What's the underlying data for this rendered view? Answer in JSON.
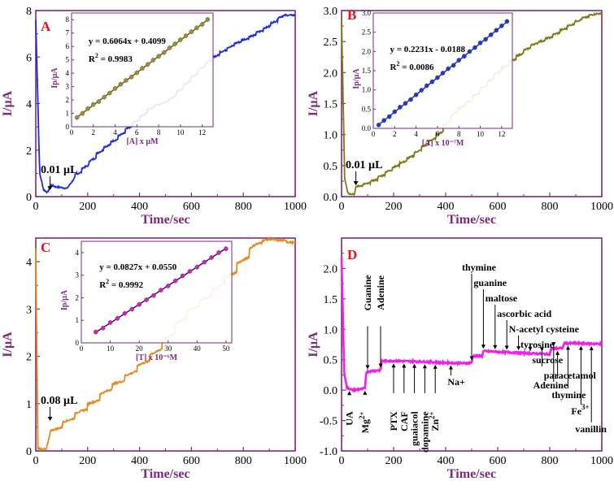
{
  "colors": {
    "axis": "#7b2a7b",
    "label_red": "#e8101a",
    "panelA": "#1a2ee0",
    "panelB": "#7d7a14",
    "panelC": "#e48a1c",
    "panelD": "#f020e8",
    "insetA_fit": "#d01010",
    "insetA_marker": "#7ea030",
    "insetB_fit": "#1a1aa0",
    "insetB_marker": "#1a3ad8",
    "insetC_fit": "#200a60",
    "insetC_marker": "#d020c8"
  },
  "chart_data": [
    {
      "panel": "A",
      "type": "line",
      "label": "A",
      "xlabel": "Time/sec",
      "ylabel": "I/µA",
      "xlim": [
        0,
        1000
      ],
      "ylim": [
        0,
        8
      ],
      "xticks": [
        "0",
        "200",
        "400",
        "600",
        "800",
        "1000"
      ],
      "yticks": [
        "0",
        "2",
        "4",
        "6",
        "8"
      ],
      "annotation": "0.01 µL",
      "annotation_x": 55,
      "profile": [
        [
          0,
          7.6
        ],
        [
          15,
          1.0
        ],
        [
          30,
          0.3
        ],
        [
          45,
          0.18
        ],
        [
          60,
          0.5
        ],
        [
          75,
          0.42
        ],
        [
          95,
          0.4
        ],
        [
          120,
          0.35
        ],
        [
          150,
          0.8
        ],
        [
          200,
          1.3
        ],
        [
          260,
          2.0
        ],
        [
          320,
          2.5
        ],
        [
          400,
          3.3
        ],
        [
          460,
          3.9
        ],
        [
          520,
          4.1
        ],
        [
          600,
          5.0
        ],
        [
          660,
          5.7
        ],
        [
          720,
          6.2
        ],
        [
          780,
          6.6
        ],
        [
          840,
          6.9
        ],
        [
          900,
          7.3
        ],
        [
          960,
          7.8
        ],
        [
          1000,
          7.8
        ]
      ],
      "steps_from": 150,
      "step_width": 28,
      "inset": {
        "xlabel": "[A] x µM",
        "ylabel": "Ip/µA",
        "xlim": [
          0,
          13
        ],
        "ylim": [
          0,
          8.5
        ],
        "xticks": [
          "0",
          "2",
          "4",
          "6",
          "8",
          "10",
          "12"
        ],
        "yticks": [
          "0",
          "1",
          "2",
          "3",
          "4",
          "5",
          "6",
          "7",
          "8"
        ],
        "equation": "y = 0.6064x + 0.4099",
        "r2_label": "R",
        "r2_sup": "2",
        "r2_value": " = 0.9983",
        "slope": 0.6064,
        "intercept": 0.4099,
        "x": [
          0.5,
          1.0,
          1.5,
          2.0,
          2.5,
          3.0,
          3.5,
          4.0,
          4.5,
          5.0,
          5.5,
          6.0,
          6.5,
          7.0,
          7.5,
          8.0,
          8.5,
          9.0,
          9.5,
          10.0,
          10.5,
          11.0,
          11.5,
          12.0,
          12.5
        ]
      }
    },
    {
      "panel": "B",
      "type": "line",
      "label": "B",
      "xlabel": "Time/sec",
      "ylabel": "I/µA",
      "xlim": [
        0,
        1000
      ],
      "ylim": [
        0,
        3.0
      ],
      "xticks": [
        "0",
        "200",
        "400",
        "600",
        "800",
        "1000"
      ],
      "yticks": [
        "0.0",
        "0.5",
        "1.0",
        "1.5",
        "2.0",
        "2.5",
        "3.0"
      ],
      "annotation": "0.01 µL",
      "annotation_x": 55,
      "profile": [
        [
          0,
          2.85
        ],
        [
          12,
          0.3
        ],
        [
          25,
          0.05
        ],
        [
          50,
          0.04
        ],
        [
          55,
          0.15
        ],
        [
          100,
          0.2
        ],
        [
          140,
          0.28
        ],
        [
          200,
          0.45
        ],
        [
          260,
          0.6
        ],
        [
          320,
          0.8
        ],
        [
          380,
          1.0
        ],
        [
          440,
          1.35
        ],
        [
          500,
          1.55
        ],
        [
          560,
          1.8
        ],
        [
          620,
          2.05
        ],
        [
          680,
          2.25
        ],
        [
          740,
          2.45
        ],
        [
          800,
          2.55
        ],
        [
          860,
          2.7
        ],
        [
          920,
          2.85
        ],
        [
          980,
          2.95
        ]
      ],
      "steps_from": 55,
      "step_width": 28,
      "inset": {
        "xlabel": "[A] x 10⁻⁷M",
        "ylabel": "Ip/µA",
        "xlim": [
          0,
          13
        ],
        "ylim": [
          0,
          3.0
        ],
        "xticks": [
          "0",
          "2",
          "4",
          "6",
          "8",
          "10",
          "12"
        ],
        "yticks": [
          "0.0",
          "0.5",
          "1.0",
          "1.5",
          "2.0",
          "2.5",
          "3.0"
        ],
        "equation": "y = 0.2231x - 0.0188",
        "r2_label": "R",
        "r2_sup": "2",
        "r2_value": " = 0.0086",
        "slope": 0.2231,
        "intercept": -0.0188,
        "x": [
          0.5,
          1.0,
          1.5,
          2.0,
          2.5,
          3.0,
          3.5,
          4.0,
          4.5,
          5.0,
          5.5,
          6.0,
          6.5,
          7.0,
          7.5,
          8.0,
          8.5,
          9.0,
          9.5,
          10.0,
          10.5,
          11.0,
          11.5,
          12.0,
          12.5
        ]
      }
    },
    {
      "panel": "C",
      "type": "line",
      "label": "C",
      "xlabel": "Time/sec",
      "ylabel": "I/µA",
      "xlim": [
        0,
        1000
      ],
      "ylim": [
        0,
        4.5
      ],
      "xticks": [
        "0",
        "200",
        "400",
        "600",
        "800",
        "1000"
      ],
      "yticks": [
        "0",
        "1",
        "2",
        "3",
        "4"
      ],
      "annotation": "0.08 µL",
      "annotation_x": 55,
      "profile": [
        [
          0,
          4.3
        ],
        [
          8,
          0.05
        ],
        [
          40,
          0.03
        ],
        [
          55,
          0.35
        ],
        [
          100,
          0.5
        ],
        [
          150,
          0.7
        ],
        [
          200,
          0.9
        ],
        [
          250,
          1.1
        ],
        [
          300,
          1.35
        ],
        [
          360,
          1.55
        ],
        [
          400,
          1.75
        ],
        [
          460,
          2.0
        ],
        [
          520,
          2.4
        ],
        [
          560,
          2.7
        ],
        [
          600,
          2.95
        ],
        [
          650,
          3.15
        ],
        [
          700,
          3.4
        ],
        [
          750,
          3.65
        ],
        [
          800,
          3.95
        ],
        [
          850,
          4.35
        ],
        [
          900,
          4.48
        ],
        [
          960,
          4.45
        ],
        [
          1000,
          4.4
        ]
      ],
      "steps_from": 55,
      "step_width": 48,
      "inset": {
        "xlabel": "[T] x 10⁻⁶M",
        "ylabel": "Ip/µA",
        "xlim": [
          0,
          52
        ],
        "ylim": [
          0,
          4.5
        ],
        "xticks": [
          "0",
          "10",
          "20",
          "30",
          "40",
          "50"
        ],
        "yticks": [
          "0",
          "1",
          "2",
          "3",
          "4"
        ],
        "equation": "y = 0.0827x + 0.0550",
        "r2_label": "R",
        "r2_sup": "2",
        "r2_value": " = 0.9992",
        "slope": 0.0827,
        "intercept": 0.055,
        "x": [
          5,
          7.5,
          10,
          12.5,
          15,
          17.5,
          20,
          22.5,
          25,
          27.5,
          30,
          32.5,
          35,
          37.5,
          40,
          42.5,
          45,
          47.5,
          50
        ]
      }
    },
    {
      "panel": "D",
      "type": "line",
      "label": "D",
      "xlabel": "Time/sec",
      "ylabel": "I/µA",
      "xlim": [
        0,
        1000
      ],
      "ylim": [
        -1.0,
        2.5
      ],
      "xticks": [
        "0",
        "200",
        "400",
        "600",
        "800",
        "1000"
      ],
      "yticks": [
        "-1.0",
        "-0.5",
        "0.0",
        "0.5",
        "1.0",
        "1.5",
        "2.0"
      ],
      "profile": [
        [
          0,
          2.2
        ],
        [
          10,
          0.3
        ],
        [
          20,
          0.05
        ],
        [
          40,
          0.0
        ],
        [
          80,
          0.02
        ],
        [
          90,
          0.03
        ],
        [
          95,
          0.3
        ],
        [
          130,
          0.32
        ],
        [
          150,
          0.33
        ],
        [
          155,
          0.48
        ],
        [
          200,
          0.48
        ],
        [
          300,
          0.47
        ],
        [
          400,
          0.45
        ],
        [
          480,
          0.44
        ],
        [
          500,
          0.45
        ],
        [
          505,
          0.56
        ],
        [
          540,
          0.56
        ],
        [
          545,
          0.64
        ],
        [
          600,
          0.63
        ],
        [
          700,
          0.61
        ],
        [
          800,
          0.59
        ],
        [
          805,
          0.68
        ],
        [
          850,
          0.69
        ],
        [
          855,
          0.77
        ],
        [
          900,
          0.77
        ],
        [
          1000,
          0.76
        ]
      ],
      "annotations_above": [
        {
          "text": "Guanine",
          "x": 100,
          "vertical": true
        },
        {
          "text": "Adenine",
          "x": 150,
          "vertical": true
        },
        {
          "text": "thymine",
          "x": 500
        },
        {
          "text": "guanine",
          "x": 545
        },
        {
          "text": "maltose",
          "x": 590
        },
        {
          "text": "ascorbic acid",
          "x": 635
        },
        {
          "text": "N-acetyl cysteine",
          "x": 680
        },
        {
          "text": "tyrosine",
          "x": 725
        },
        {
          "text": "sucrose",
          "x": 770
        },
        {
          "text": "paracetamol",
          "x": 815
        }
      ],
      "annotations_below": [
        {
          "text": "UA",
          "x": 30,
          "vertical": true
        },
        {
          "text": "Mg",
          "sup": "2+",
          "x": 90,
          "vertical": true
        },
        {
          "text": "PTX",
          "x": 200,
          "vertical": true
        },
        {
          "text": "CAF",
          "x": 240,
          "vertical": true
        },
        {
          "text": "guaiacol",
          "x": 280,
          "vertical": true
        },
        {
          "text": "dopamine",
          "x": 320,
          "vertical": true
        },
        {
          "text": "Zn",
          "sup": "2+",
          "x": 360,
          "vertical": true
        },
        {
          "text": "Na+",
          "x": 420
        },
        {
          "text": "Adenine",
          "x": 830
        },
        {
          "text": "thymine",
          "x": 870
        },
        {
          "text": "Fe",
          "sup": "3+",
          "x": 920
        },
        {
          "text": "vanillin",
          "x": 960
        }
      ]
    }
  ]
}
